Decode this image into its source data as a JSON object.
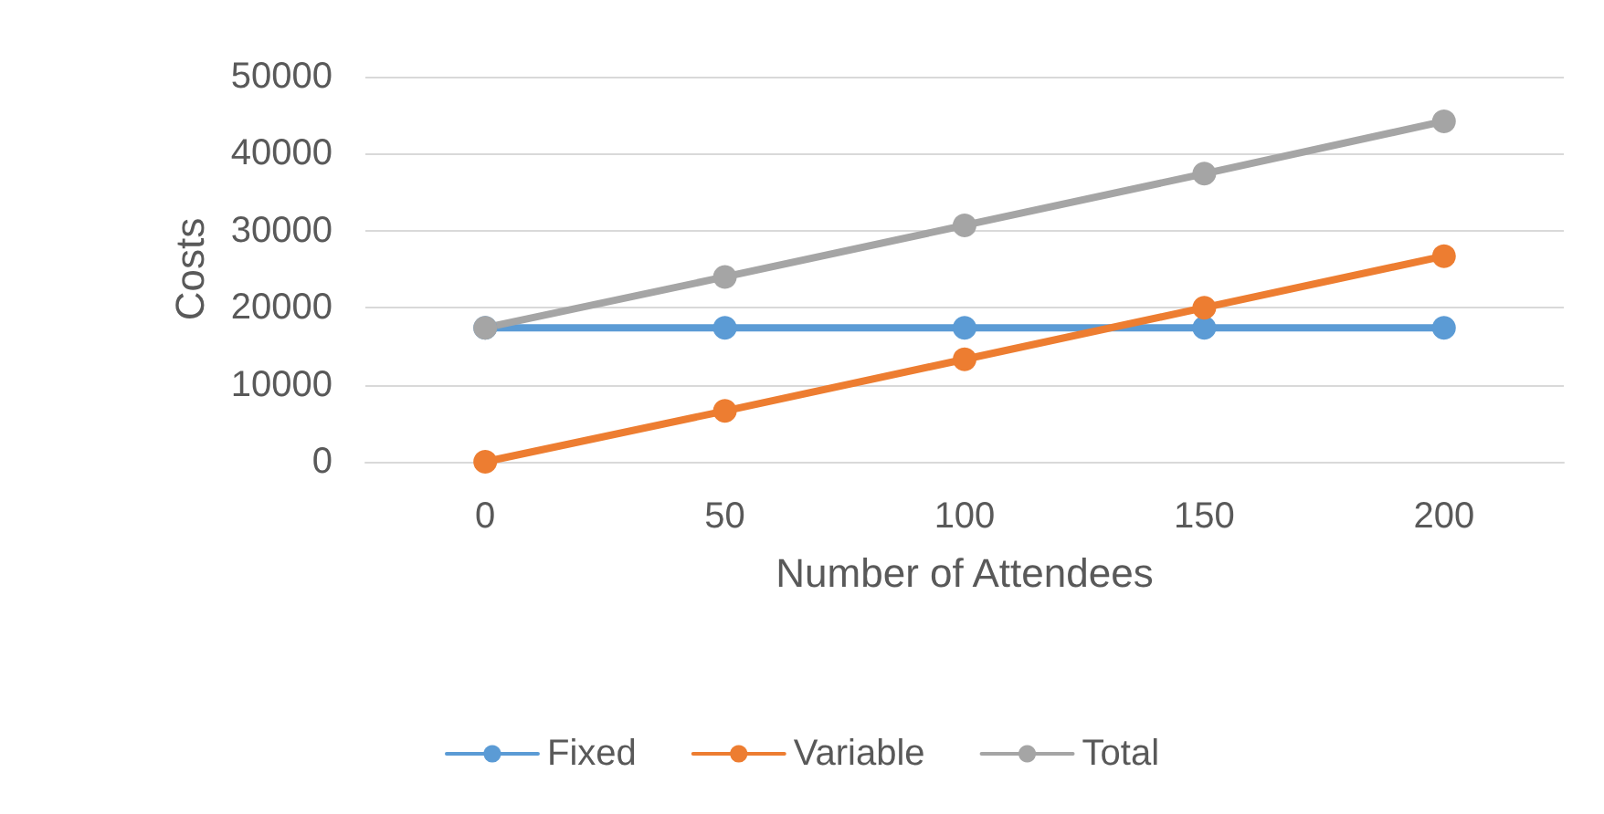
{
  "chart_data": {
    "type": "line",
    "xlabel": "Number of Attendees",
    "ylabel": "Costs",
    "categories": [
      "0",
      "50",
      "100",
      "150",
      "200"
    ],
    "series": [
      {
        "name": "Fixed",
        "color": "#5b9bd5",
        "values": [
          17400,
          17400,
          17400,
          17400,
          17400
        ]
      },
      {
        "name": "Variable",
        "color": "#ed7d31",
        "values": [
          0,
          6600,
          13300,
          20000,
          26700
        ]
      },
      {
        "name": "Total",
        "color": "#a5a5a5",
        "values": [
          17400,
          24000,
          30700,
          37400,
          44200
        ]
      }
    ],
    "ylim": [
      0,
      50000
    ],
    "yticks": [
      0,
      10000,
      20000,
      30000,
      40000,
      50000
    ],
    "grid": "y",
    "legend": "bottom",
    "marker": "circle",
    "line_style": "solid"
  }
}
